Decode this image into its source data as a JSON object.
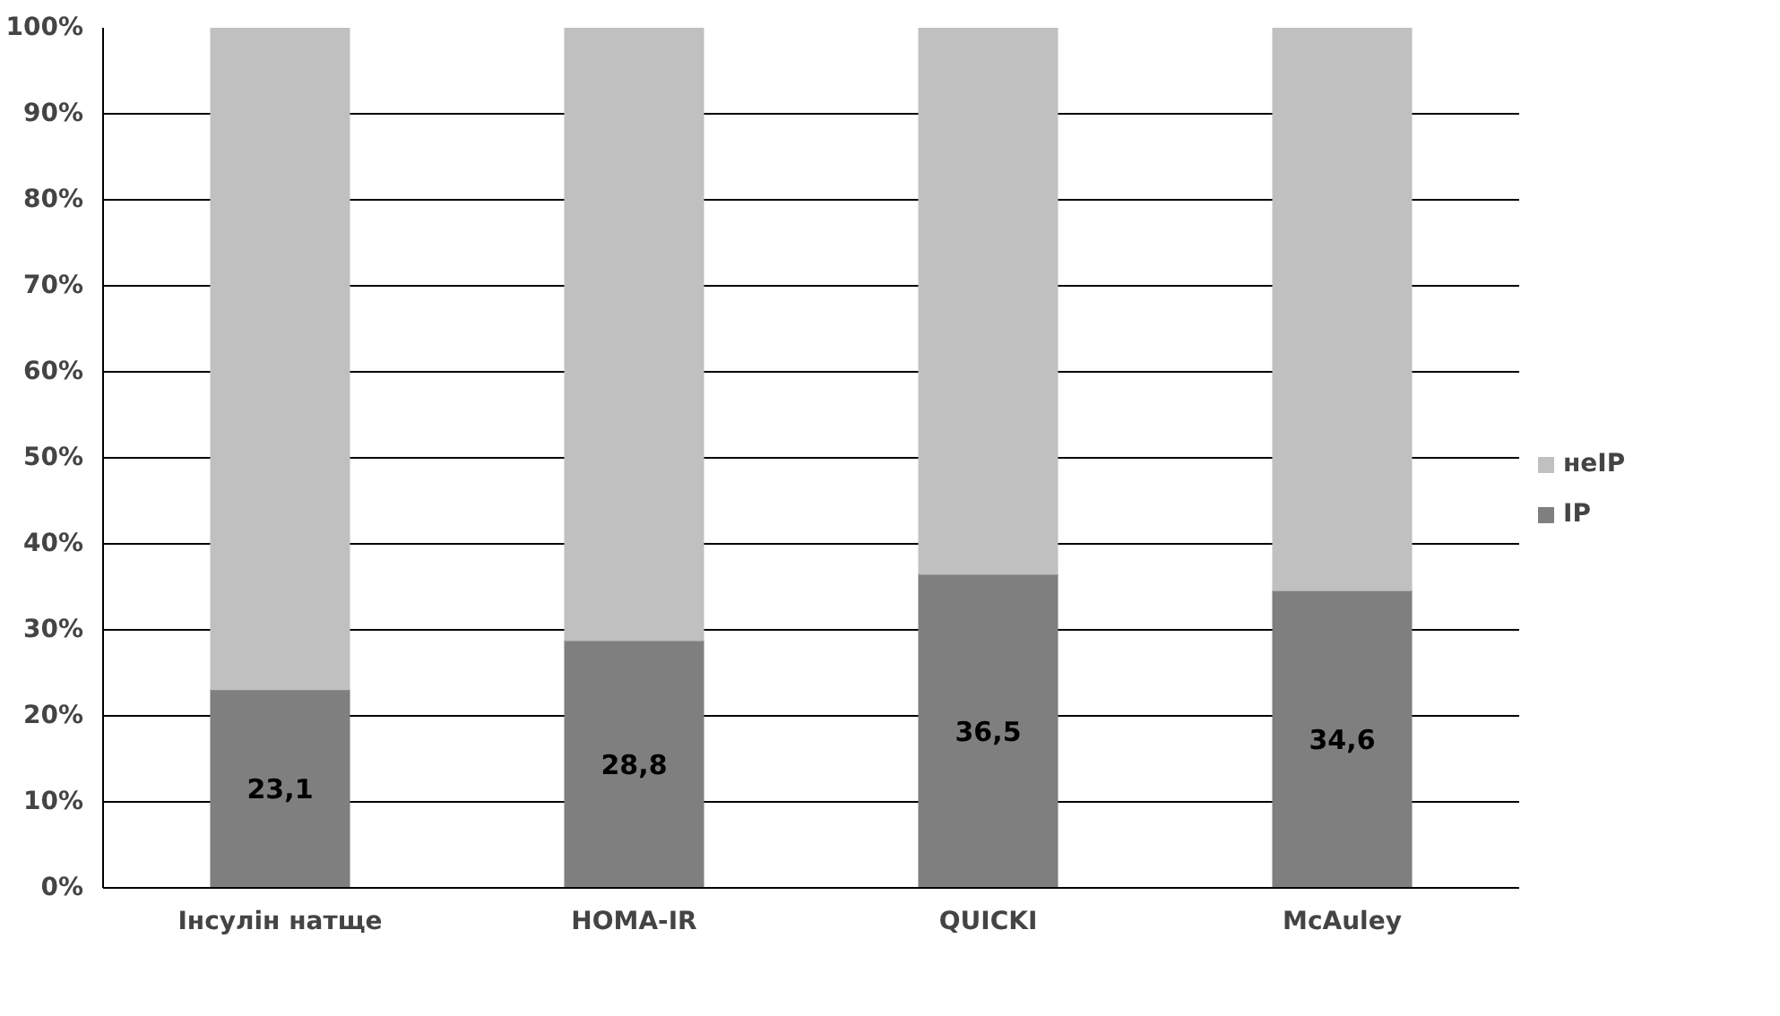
{
  "chart_data": {
    "type": "bar",
    "stacked": true,
    "categories": [
      "Інсулін натще",
      "HOMA-IR",
      "QUICKI",
      "McAuley"
    ],
    "series": [
      {
        "name": "ІР",
        "color": "#7f7f7f",
        "values": [
          23.1,
          28.8,
          36.5,
          34.6
        ],
        "value_labels": [
          "23,1",
          "28,8",
          "36,5",
          "34,6"
        ]
      },
      {
        "name": "неІР",
        "color": "#c0c0c0",
        "values": [
          76.9,
          71.2,
          63.5,
          65.4
        ]
      }
    ],
    "ylim": [
      0,
      100
    ],
    "yticks": [
      {
        "value": 0,
        "label": "0%"
      },
      {
        "value": 10,
        "label": "10%"
      },
      {
        "value": 20,
        "label": "20%"
      },
      {
        "value": 30,
        "label": "30%"
      },
      {
        "value": 40,
        "label": "40%"
      },
      {
        "value": 50,
        "label": "50%"
      },
      {
        "value": 60,
        "label": "60%"
      },
      {
        "value": 70,
        "label": "70%"
      },
      {
        "value": 80,
        "label": "80%"
      },
      {
        "value": 90,
        "label": "90%"
      },
      {
        "value": 100,
        "label": "100%"
      }
    ],
    "grid": "y",
    "legend": "right"
  }
}
